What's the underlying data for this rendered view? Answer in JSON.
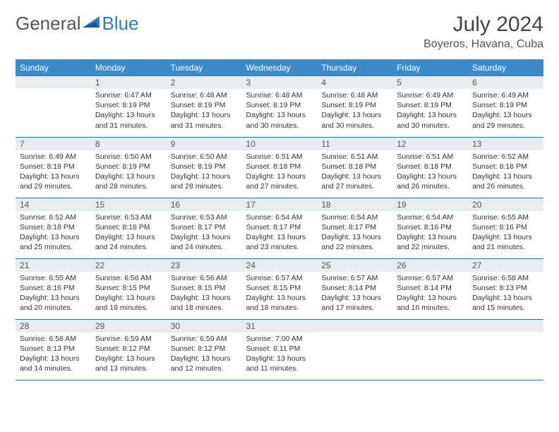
{
  "logo": {
    "text1": "General",
    "text2": "Blue"
  },
  "title": "July 2024",
  "location": "Boyeros, Havana, Cuba",
  "colors": {
    "header_bg": "#3b8bc9",
    "header_text": "#ffffff",
    "daynum_bg": "#e9ecef",
    "border": "#2f6fa8",
    "logo_gray": "#555555",
    "logo_blue": "#2f7bbf"
  },
  "weekdays": [
    "Sunday",
    "Monday",
    "Tuesday",
    "Wednesday",
    "Thursday",
    "Friday",
    "Saturday"
  ],
  "weeks": [
    [
      {
        "num": "",
        "lines": []
      },
      {
        "num": "1",
        "lines": [
          "Sunrise: 6:47 AM",
          "Sunset: 8:19 PM",
          "Daylight: 13 hours",
          "and 31 minutes."
        ]
      },
      {
        "num": "2",
        "lines": [
          "Sunrise: 6:48 AM",
          "Sunset: 8:19 PM",
          "Daylight: 13 hours",
          "and 31 minutes."
        ]
      },
      {
        "num": "3",
        "lines": [
          "Sunrise: 6:48 AM",
          "Sunset: 8:19 PM",
          "Daylight: 13 hours",
          "and 30 minutes."
        ]
      },
      {
        "num": "4",
        "lines": [
          "Sunrise: 6:48 AM",
          "Sunset: 8:19 PM",
          "Daylight: 13 hours",
          "and 30 minutes."
        ]
      },
      {
        "num": "5",
        "lines": [
          "Sunrise: 6:49 AM",
          "Sunset: 8:19 PM",
          "Daylight: 13 hours",
          "and 30 minutes."
        ]
      },
      {
        "num": "6",
        "lines": [
          "Sunrise: 6:49 AM",
          "Sunset: 8:19 PM",
          "Daylight: 13 hours",
          "and 29 minutes."
        ]
      }
    ],
    [
      {
        "num": "7",
        "lines": [
          "Sunrise: 6:49 AM",
          "Sunset: 8:19 PM",
          "Daylight: 13 hours",
          "and 29 minutes."
        ]
      },
      {
        "num": "8",
        "lines": [
          "Sunrise: 6:50 AM",
          "Sunset: 8:19 PM",
          "Daylight: 13 hours",
          "and 28 minutes."
        ]
      },
      {
        "num": "9",
        "lines": [
          "Sunrise: 6:50 AM",
          "Sunset: 8:19 PM",
          "Daylight: 13 hours",
          "and 28 minutes."
        ]
      },
      {
        "num": "10",
        "lines": [
          "Sunrise: 6:51 AM",
          "Sunset: 8:18 PM",
          "Daylight: 13 hours",
          "and 27 minutes."
        ]
      },
      {
        "num": "11",
        "lines": [
          "Sunrise: 6:51 AM",
          "Sunset: 8:18 PM",
          "Daylight: 13 hours",
          "and 27 minutes."
        ]
      },
      {
        "num": "12",
        "lines": [
          "Sunrise: 6:51 AM",
          "Sunset: 8:18 PM",
          "Daylight: 13 hours",
          "and 26 minutes."
        ]
      },
      {
        "num": "13",
        "lines": [
          "Sunrise: 6:52 AM",
          "Sunset: 8:18 PM",
          "Daylight: 13 hours",
          "and 26 minutes."
        ]
      }
    ],
    [
      {
        "num": "14",
        "lines": [
          "Sunrise: 6:52 AM",
          "Sunset: 8:18 PM",
          "Daylight: 13 hours",
          "and 25 minutes."
        ]
      },
      {
        "num": "15",
        "lines": [
          "Sunrise: 6:53 AM",
          "Sunset: 8:18 PM",
          "Daylight: 13 hours",
          "and 24 minutes."
        ]
      },
      {
        "num": "16",
        "lines": [
          "Sunrise: 6:53 AM",
          "Sunset: 8:17 PM",
          "Daylight: 13 hours",
          "and 24 minutes."
        ]
      },
      {
        "num": "17",
        "lines": [
          "Sunrise: 6:54 AM",
          "Sunset: 8:17 PM",
          "Daylight: 13 hours",
          "and 23 minutes."
        ]
      },
      {
        "num": "18",
        "lines": [
          "Sunrise: 6:54 AM",
          "Sunset: 8:17 PM",
          "Daylight: 13 hours",
          "and 22 minutes."
        ]
      },
      {
        "num": "19",
        "lines": [
          "Sunrise: 6:54 AM",
          "Sunset: 8:16 PM",
          "Daylight: 13 hours",
          "and 22 minutes."
        ]
      },
      {
        "num": "20",
        "lines": [
          "Sunrise: 6:55 AM",
          "Sunset: 8:16 PM",
          "Daylight: 13 hours",
          "and 21 minutes."
        ]
      }
    ],
    [
      {
        "num": "21",
        "lines": [
          "Sunrise: 6:55 AM",
          "Sunset: 8:16 PM",
          "Daylight: 13 hours",
          "and 20 minutes."
        ]
      },
      {
        "num": "22",
        "lines": [
          "Sunrise: 6:56 AM",
          "Sunset: 8:15 PM",
          "Daylight: 13 hours",
          "and 19 minutes."
        ]
      },
      {
        "num": "23",
        "lines": [
          "Sunrise: 6:56 AM",
          "Sunset: 8:15 PM",
          "Daylight: 13 hours",
          "and 18 minutes."
        ]
      },
      {
        "num": "24",
        "lines": [
          "Sunrise: 6:57 AM",
          "Sunset: 8:15 PM",
          "Daylight: 13 hours",
          "and 18 minutes."
        ]
      },
      {
        "num": "25",
        "lines": [
          "Sunrise: 6:57 AM",
          "Sunset: 8:14 PM",
          "Daylight: 13 hours",
          "and 17 minutes."
        ]
      },
      {
        "num": "26",
        "lines": [
          "Sunrise: 6:57 AM",
          "Sunset: 8:14 PM",
          "Daylight: 13 hours",
          "and 16 minutes."
        ]
      },
      {
        "num": "27",
        "lines": [
          "Sunrise: 6:58 AM",
          "Sunset: 8:13 PM",
          "Daylight: 13 hours",
          "and 15 minutes."
        ]
      }
    ],
    [
      {
        "num": "28",
        "lines": [
          "Sunrise: 6:58 AM",
          "Sunset: 8:13 PM",
          "Daylight: 13 hours",
          "and 14 minutes."
        ]
      },
      {
        "num": "29",
        "lines": [
          "Sunrise: 6:59 AM",
          "Sunset: 8:12 PM",
          "Daylight: 13 hours",
          "and 13 minutes."
        ]
      },
      {
        "num": "30",
        "lines": [
          "Sunrise: 6:59 AM",
          "Sunset: 8:12 PM",
          "Daylight: 13 hours",
          "and 12 minutes."
        ]
      },
      {
        "num": "31",
        "lines": [
          "Sunrise: 7:00 AM",
          "Sunset: 8:11 PM",
          "Daylight: 13 hours",
          "and 11 minutes."
        ]
      },
      {
        "num": "",
        "lines": []
      },
      {
        "num": "",
        "lines": []
      },
      {
        "num": "",
        "lines": []
      }
    ]
  ]
}
